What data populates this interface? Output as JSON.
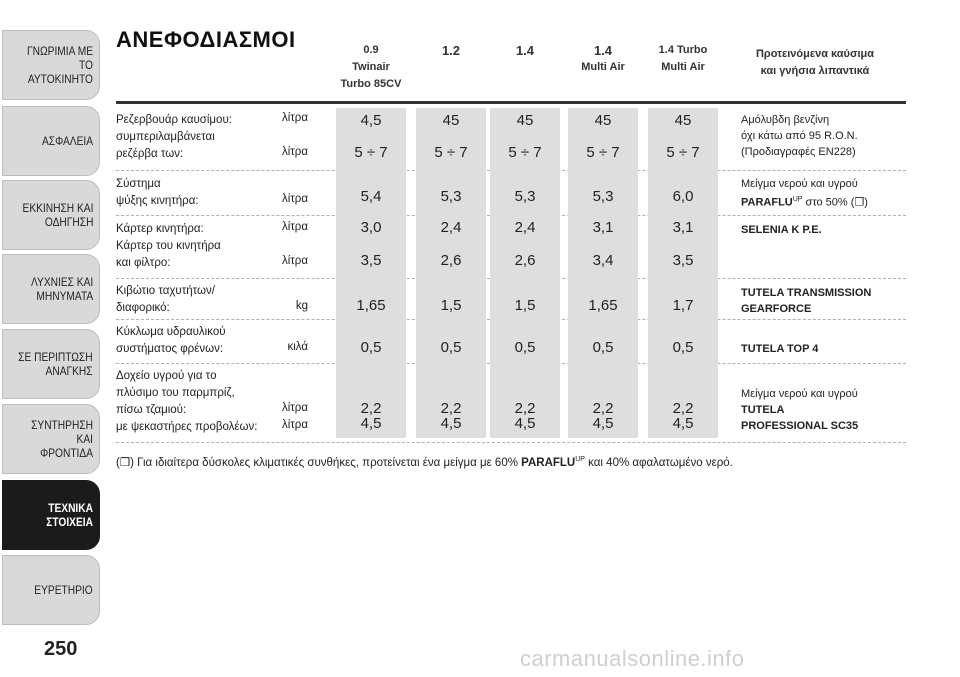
{
  "sidebar": {
    "tabs": [
      {
        "label": "ΓΝΩΡΙΜΙΑ ΜΕ ΤΟ\nΑΥΤΟΚΙΝΗΤΟ"
      },
      {
        "label": "ΑΣΦΑΛΕΙΑ"
      },
      {
        "label": "ΕΚΚΙΝΗΣΗ ΚΑΙ\nΟΔΗΓΗΣΗ"
      },
      {
        "label": "ΛΥΧΝΙΕΣ ΚΑΙ\nΜΗΝΥΜΑΤΑ"
      },
      {
        "label": "ΣΕ ΠΕΡΙΠΤΩΣΗ\nΑΝΑΓΚΗΣ"
      },
      {
        "label": "ΣΥΝΤΗΡΗΣΗ ΚΑΙ\nΦΡΟΝΤΙΔΑ"
      },
      {
        "label": "ΤΕΧΝΙΚΑ ΣΤΟΙΧΕΙΑ"
      },
      {
        "label": "ΕΥΡΕΤΗΡΙΟ"
      }
    ],
    "page_number": "250"
  },
  "title": "ΑΝΕΦΟΔΙΑΣΜΟΙ",
  "headers": [
    {
      "l1": "0.9",
      "l2": "Twinair",
      "l3": "Turbo 85CV"
    },
    {
      "l1": "1.2",
      "l2": "",
      "l3": ""
    },
    {
      "l1": "1.4",
      "l2": "",
      "l3": ""
    },
    {
      "l1": "1.4",
      "l2": "Multi Air",
      "l3": ""
    },
    {
      "l1": "1.4 Turbo",
      "l2": "Multi Air",
      "l3": ""
    }
  ],
  "fuel_header": {
    "l1": "Προτεινόμενα καύσιμα",
    "l2": "και γνήσια λιπαντικά"
  },
  "rows": [
    {
      "labels": [
        "Ρεζερβουάρ καυσίμου:",
        "συμπεριλαμβάνεται",
        "ρεζέρβα των:"
      ],
      "units": [
        "λίτρα",
        "",
        "λίτρα"
      ]
    },
    {
      "labels": [
        "Σύστημα",
        "ψύξης κινητήρα:"
      ],
      "units": [
        "",
        "λίτρα"
      ]
    },
    {
      "labels": [
        "Κάρτερ κινητήρα:",
        "Κάρτερ του κινητήρα",
        "και φίλτρο:"
      ],
      "units": [
        "λίτρα",
        "",
        "λίτρα"
      ]
    },
    {
      "labels": [
        "Κιβώτιο ταχυτήτων/",
        "διαφορικό:"
      ],
      "units": [
        "",
        "kg"
      ]
    },
    {
      "labels": [
        "Κύκλωμα υδραυλικού",
        "συστήματος φρένων:"
      ],
      "units": [
        "",
        "κιλά"
      ]
    },
    {
      "labels": [
        "Δοχείο υγρού για το",
        "πλύσιμο του παρμπρίζ,",
        "πίσω τζαμιού:",
        "με ψεκαστήρες προβολέων:"
      ],
      "units": [
        "",
        "",
        "λίτρα",
        "λίτρα"
      ]
    }
  ],
  "values": [
    {
      "tank": "4,5",
      "reserve": "5 ÷ 7",
      "cooling": "5,4",
      "sump": "3,0",
      "sump_filter": "3,5",
      "gearbox": "1,65",
      "brake": "0,5",
      "washer1": "2,2",
      "washer2": "4,5"
    },
    {
      "tank": "45",
      "reserve": "5 ÷ 7",
      "cooling": "5,3",
      "sump": "2,4",
      "sump_filter": "2,6",
      "gearbox": "1,5",
      "brake": "0,5",
      "washer1": "2,2",
      "washer2": "4,5"
    },
    {
      "tank": "45",
      "reserve": "5 ÷ 7",
      "cooling": "5,3",
      "sump": "2,4",
      "sump_filter": "2,6",
      "gearbox": "1,5",
      "brake": "0,5",
      "washer1": "2,2",
      "washer2": "4,5"
    },
    {
      "tank": "45",
      "reserve": "5 ÷ 7",
      "cooling": "5,3",
      "sump": "3,1",
      "sump_filter": "3,4",
      "gearbox": "1,65",
      "brake": "0,5",
      "washer1": "2,2",
      "washer2": "4,5"
    },
    {
      "tank": "45",
      "reserve": "5 ÷ 7",
      "cooling": "6,0",
      "sump": "3,1",
      "sump_filter": "3,5",
      "gearbox": "1,7",
      "brake": "0,5",
      "washer1": "2,2",
      "washer2": "4,5"
    }
  ],
  "fuels": {
    "f1": [
      "Αμόλυβδη βενζίνη",
      "όχι κάτω από 95 R.O.N.",
      "(Προδιαγραφές EN228)"
    ],
    "f2a": "Μείγμα νερού και υγρού",
    "f2b_bold": "PARAFLU",
    "f2b_sup": "UP",
    "f2b_rest": " στο 50% (❒)",
    "f3": "SELENIA K P.E.",
    "f4": [
      "TUTELA TRANSMISSION",
      "GEARFORCE"
    ],
    "f5": "TUTELA TOP 4",
    "f6a": "Μείγμα νερού και υγρού",
    "f6b": [
      "TUTELA",
      "PROFESSIONAL SC35"
    ]
  },
  "footnote": {
    "pre": "(❒)  Για ιδιαίτερα δύσκολες κλιματικές συνθήκες, προτείνεται ένα μείγμα με 60% ",
    "bold": "PARAFLU",
    "sup": "UP",
    "post": " και 40% αφαλατωμένο νερό."
  },
  "watermark": "carmanualsonline.info"
}
